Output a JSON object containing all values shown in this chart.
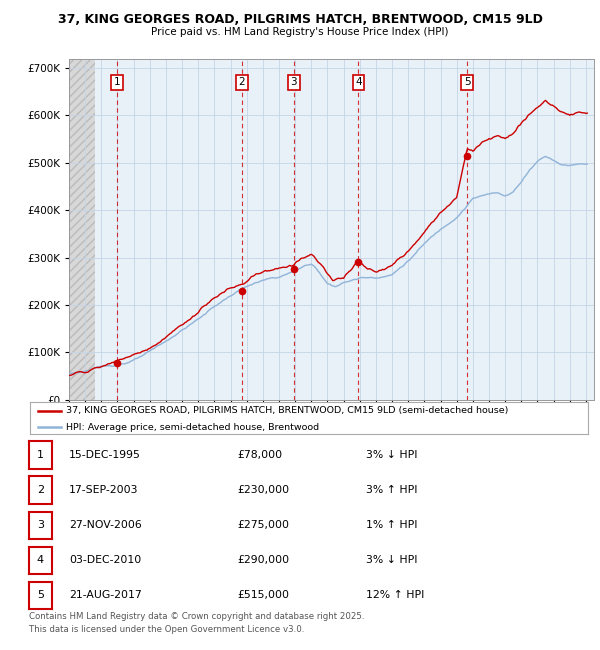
{
  "title_line1": "37, KING GEORGES ROAD, PILGRIMS HATCH, BRENTWOOD, CM15 9LD",
  "title_line2": "Price paid vs. HM Land Registry's House Price Index (HPI)",
  "ylim": [
    0,
    720000
  ],
  "ytick_labels": [
    "£0",
    "£100K",
    "£200K",
    "£300K",
    "£400K",
    "£500K",
    "£600K",
    "£700K"
  ],
  "x_start_year": 1993,
  "x_end_year": 2025,
  "sale_years_float": [
    1995.958,
    2003.708,
    2006.917,
    2010.917,
    2017.639
  ],
  "sale_prices": [
    78000,
    230000,
    275000,
    290000,
    515000
  ],
  "sale_labels": [
    "1",
    "2",
    "3",
    "4",
    "5"
  ],
  "sale_label_text": [
    "15-DEC-1995",
    "17-SEP-2003",
    "27-NOV-2006",
    "03-DEC-2010",
    "21-AUG-2017"
  ],
  "sale_price_text": [
    "£78,000",
    "£230,000",
    "£275,000",
    "£290,000",
    "£515,000"
  ],
  "sale_hpi_text": [
    "3% ↓ HPI",
    "3% ↑ HPI",
    "1% ↑ HPI",
    "3% ↓ HPI",
    "12% ↑ HPI"
  ],
  "hpi_color": "#90b4d8",
  "price_color": "#cc0000",
  "legend_line1": "37, KING GEORGES ROAD, PILGRIMS HATCH, BRENTWOOD, CM15 9LD (semi-detached house)",
  "legend_line2": "HPI: Average price, semi-detached house, Brentwood",
  "footer_line1": "Contains HM Land Registry data © Crown copyright and database right 2025.",
  "footer_line2": "This data is licensed under the Open Government Licence v3.0."
}
